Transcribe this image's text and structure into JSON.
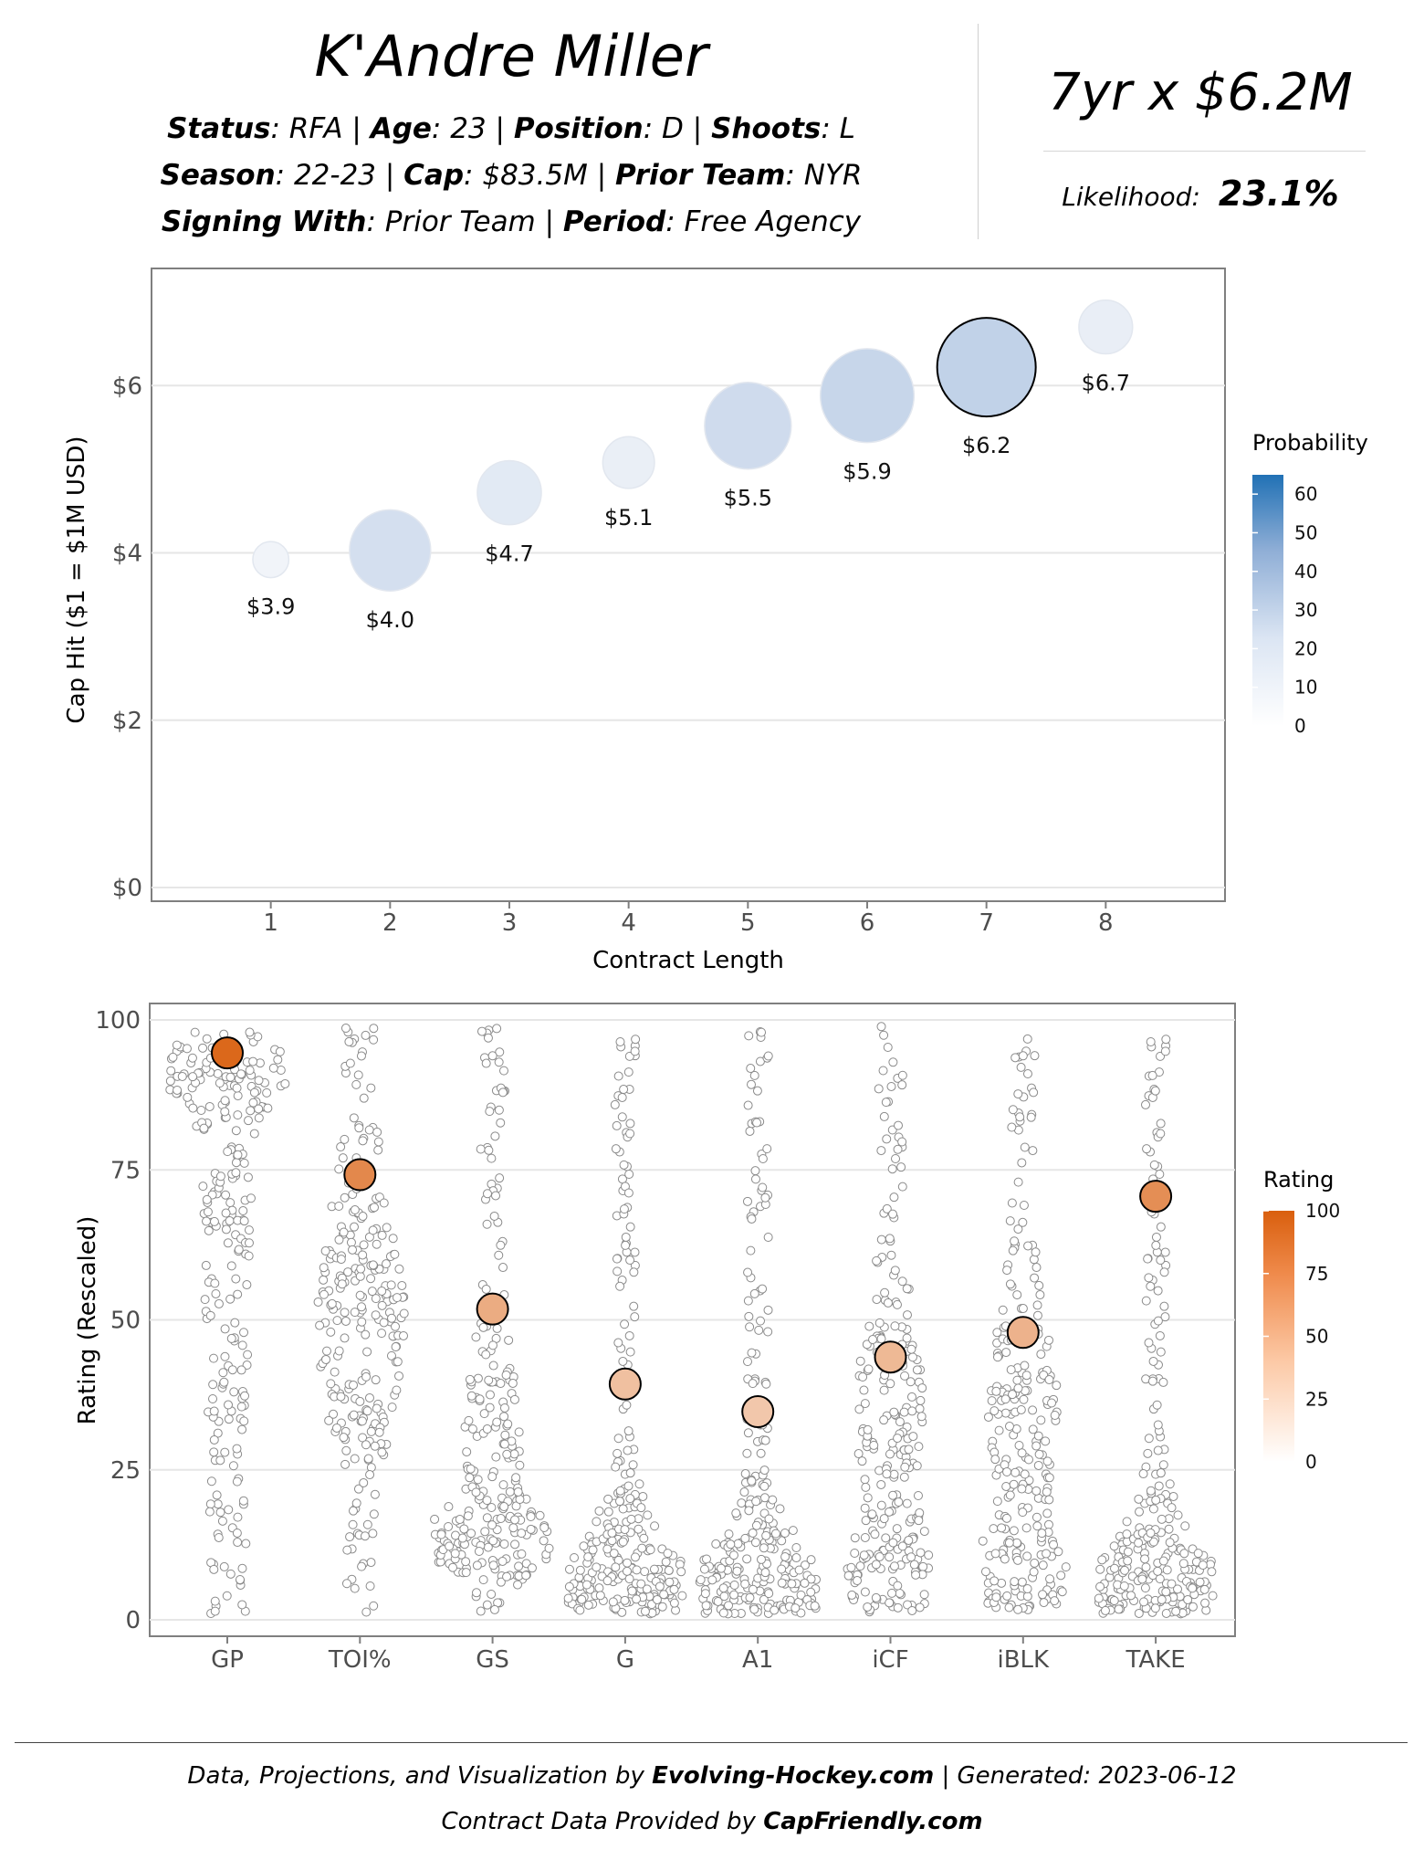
{
  "header": {
    "player_name": "K'Andre Miller",
    "status_label": "Status",
    "status_value": ": RFA | ",
    "age_label": "Age",
    "age_value": ": 23 | ",
    "position_label": "Position",
    "position_value": ": D | ",
    "shoots_label": "Shoots",
    "shoots_value": ": L",
    "season_label": "Season",
    "season_value": ": 22-23 | ",
    "cap_label": "Cap",
    "cap_value": ": $83.5M | ",
    "prior_team_label": "Prior Team",
    "prior_team_value": ": NYR",
    "signing_label": "Signing With",
    "signing_value": ": Prior Team | ",
    "period_label": "Period",
    "period_value": ": Free Agency",
    "contract": "7yr x $6.2M",
    "likelihood_label": "Likelihood:",
    "likelihood_value": "23.1%"
  },
  "footer": {
    "line1_prefix": "Data, Projections, and Visualization by ",
    "line1_brand": "Evolving-Hockey.com",
    "line1_suffix": " | Generated: 2023-06-12",
    "line2_prefix": "Contract Data Provided by ",
    "line2_brand": "CapFriendly.com"
  },
  "colors": {
    "probability_low": "#ffffff",
    "probability_high": "#2171b5",
    "rating_low": "#ffffff",
    "rating_high": "#d95f0e",
    "grid": "#e6e6e6",
    "panel_border": "#7f7f7f"
  },
  "chart_data": [
    {
      "type": "scatter",
      "subtype": "bubble",
      "xlabel": "Contract Length",
      "ylabel": "Cap Hit ($1 = $1M USD)",
      "x_ticks": [
        "1",
        "2",
        "3",
        "4",
        "5",
        "6",
        "7",
        "8"
      ],
      "y_ticks": [
        "$0",
        "$2",
        "$4",
        "$6"
      ],
      "ylim": [
        0,
        7.4
      ],
      "xlim": [
        0,
        9
      ],
      "grid": true,
      "legend": {
        "title": "Probability",
        "ticks": [
          "60",
          "50",
          "40",
          "30",
          "20",
          "10",
          "0"
        ],
        "min": 0,
        "max": 65,
        "placement": "right"
      },
      "points": [
        {
          "length": 1,
          "cap_hit": 3.92,
          "label": "$3.9",
          "probability": 1.5,
          "selected": false
        },
        {
          "length": 2,
          "cap_hit": 4.03,
          "label": "$4.0",
          "probability": 14.5,
          "selected": false
        },
        {
          "length": 3,
          "cap_hit": 4.72,
          "label": "$4.7",
          "probability": 8.0,
          "selected": false
        },
        {
          "length": 4,
          "cap_hit": 5.08,
          "label": "$5.1",
          "probability": 4.5,
          "selected": false
        },
        {
          "length": 5,
          "cap_hit": 5.52,
          "label": "$5.5",
          "probability": 17.0,
          "selected": false
        },
        {
          "length": 6,
          "cap_hit": 5.88,
          "label": "$5.9",
          "probability": 20.5,
          "selected": false
        },
        {
          "length": 7,
          "cap_hit": 6.22,
          "label": "$6.2",
          "probability": 23.1,
          "selected": true
        },
        {
          "length": 8,
          "cap_hit": 6.7,
          "label": "$6.7",
          "probability": 5.0,
          "selected": false
        }
      ]
    },
    {
      "type": "scatter",
      "subtype": "beeswarm",
      "xlabel": "",
      "ylabel": "Rating (Rescaled)",
      "categories": [
        "GP",
        "TOI%",
        "GS",
        "G",
        "A1",
        "iCF",
        "iBLK",
        "TAKE"
      ],
      "y_ticks": [
        "0",
        "25",
        "50",
        "75",
        "100"
      ],
      "ylim": [
        -2,
        102
      ],
      "grid": true,
      "legend": {
        "title": "Rating",
        "ticks": [
          "100",
          "75",
          "50",
          "25",
          "0"
        ],
        "min": 0,
        "max": 100,
        "placement": "right"
      },
      "player_ratings": [
        94.5,
        74.2,
        51.8,
        39.3,
        34.7,
        43.8,
        47.9,
        70.6
      ],
      "distribution_shapes": {
        "GP": "top-heavy",
        "TOI%": "middle",
        "GS": "bottom-bulge",
        "G": "bottom-heavy",
        "A1": "bottom-heavy",
        "iCF": "bottom-middle",
        "iBLK": "bottom-middle",
        "TAKE": "bottom-heavy"
      }
    }
  ]
}
